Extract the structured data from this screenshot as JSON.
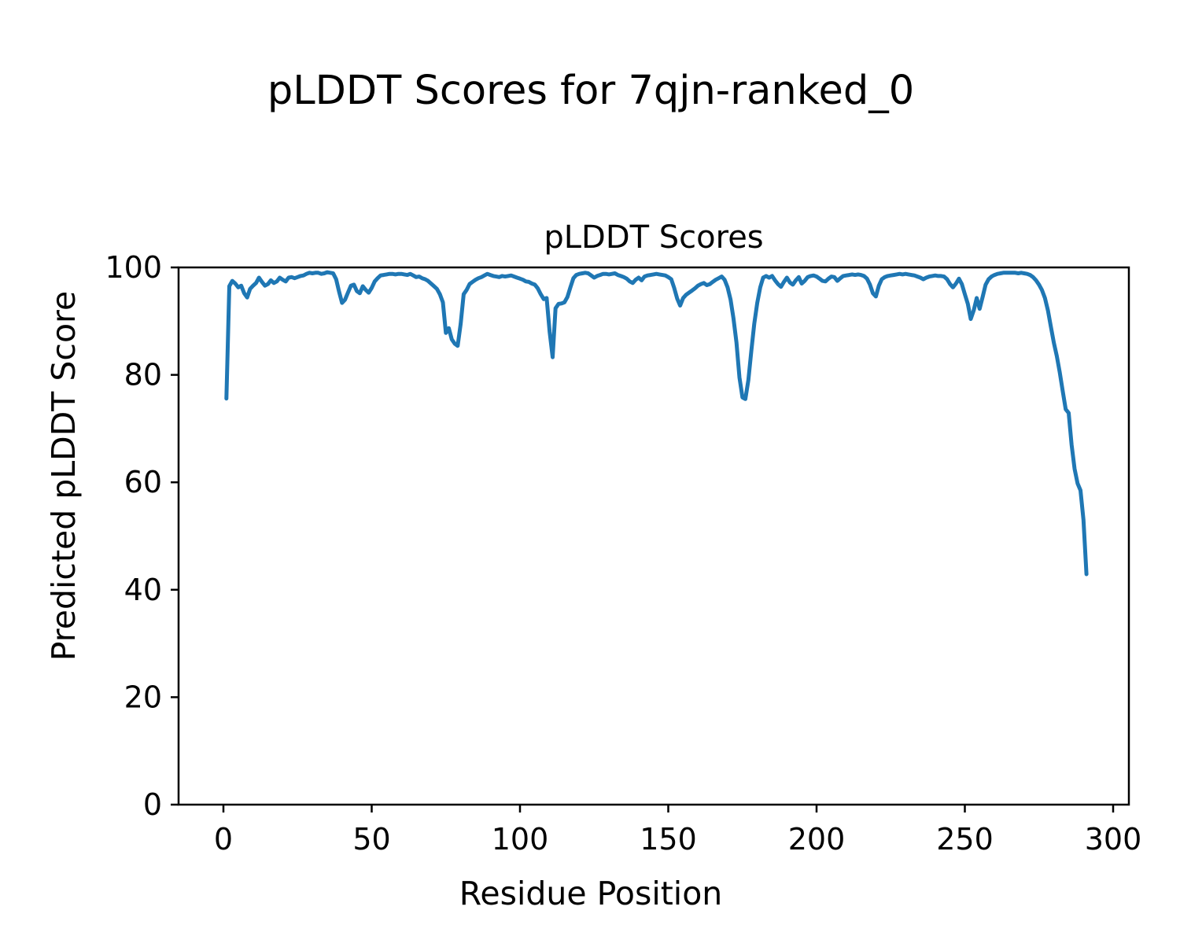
{
  "figure": {
    "suptitle": "pLDDT Scores for 7qjn-ranked_0",
    "background": "#ffffff"
  },
  "chart_data": {
    "type": "line",
    "title": "pLDDT Scores",
    "xlabel": "Residue Position",
    "ylabel": "Predicted pLDDT Score",
    "series_name": "pLDDT",
    "line_color": "#1f77b4",
    "line_width": 5,
    "grid": false,
    "legend": "none",
    "xlim": [
      -15,
      306
    ],
    "ylim": [
      0,
      100
    ],
    "xticks": [
      0,
      50,
      100,
      150,
      200,
      250,
      300
    ],
    "yticks": [
      0,
      20,
      40,
      60,
      80,
      100
    ],
    "x_start": 1,
    "x_step": 1,
    "values": [
      75.6,
      96.5,
      97.5,
      97.0,
      96.3,
      96.6,
      95.2,
      94.4,
      96.0,
      96.6,
      97.1,
      98.1,
      97.3,
      96.6,
      96.9,
      97.6,
      97.1,
      97.4,
      98.1,
      97.7,
      97.4,
      98.1,
      98.2,
      98.0,
      98.2,
      98.4,
      98.5,
      98.8,
      99.0,
      98.9,
      99.0,
      99.0,
      98.8,
      98.9,
      99.1,
      99.0,
      98.9,
      97.8,
      95.5,
      93.4,
      94.0,
      95.3,
      96.6,
      96.8,
      95.6,
      95.2,
      96.5,
      95.8,
      95.3,
      96.2,
      97.4,
      98.0,
      98.5,
      98.6,
      98.7,
      98.8,
      98.8,
      98.7,
      98.8,
      98.8,
      98.7,
      98.6,
      98.8,
      98.5,
      98.2,
      98.3,
      98.0,
      97.8,
      97.5,
      97.0,
      96.5,
      96.0,
      95.0,
      93.5,
      87.8,
      88.7,
      86.6,
      85.8,
      85.4,
      89.5,
      95.0,
      95.8,
      96.9,
      97.3,
      97.7,
      98.0,
      98.2,
      98.5,
      98.8,
      98.6,
      98.4,
      98.3,
      98.2,
      98.4,
      98.3,
      98.4,
      98.5,
      98.3,
      98.1,
      97.9,
      97.7,
      97.4,
      97.3,
      97.0,
      96.8,
      96.1,
      95.0,
      94.1,
      94.3,
      88.0,
      83.3,
      92.4,
      93.2,
      93.3,
      93.5,
      94.5,
      96.3,
      98.0,
      98.6,
      98.8,
      98.9,
      99.0,
      98.9,
      98.5,
      98.1,
      98.4,
      98.6,
      98.8,
      98.8,
      98.7,
      98.8,
      98.9,
      98.6,
      98.4,
      98.2,
      97.9,
      97.4,
      97.1,
      97.7,
      98.1,
      97.6,
      98.3,
      98.5,
      98.6,
      98.7,
      98.8,
      98.7,
      98.6,
      98.5,
      98.2,
      97.8,
      96.2,
      94.2,
      92.9,
      94.3,
      94.9,
      95.3,
      95.7,
      96.1,
      96.6,
      96.9,
      97.1,
      96.7,
      96.9,
      97.3,
      97.7,
      98.0,
      98.3,
      97.7,
      96.3,
      94.0,
      90.5,
      86.0,
      79.5,
      75.8,
      75.5,
      79.0,
      84.5,
      89.5,
      93.4,
      96.3,
      98.1,
      98.4,
      98.1,
      98.4,
      97.6,
      96.9,
      96.4,
      97.3,
      98.1,
      97.2,
      96.8,
      97.6,
      98.2,
      97.0,
      97.5,
      98.2,
      98.4,
      98.5,
      98.3,
      97.9,
      97.5,
      97.4,
      97.9,
      98.3,
      98.2,
      97.5,
      98.0,
      98.4,
      98.5,
      98.6,
      98.7,
      98.6,
      98.7,
      98.6,
      98.4,
      97.9,
      96.8,
      95.2,
      94.6,
      96.6,
      97.8,
      98.2,
      98.4,
      98.5,
      98.6,
      98.7,
      98.8,
      98.7,
      98.8,
      98.7,
      98.6,
      98.5,
      98.3,
      98.1,
      97.8,
      98.1,
      98.3,
      98.4,
      98.5,
      98.4,
      98.4,
      98.3,
      97.8,
      96.9,
      96.3,
      97.0,
      97.9,
      96.9,
      95.0,
      93.2,
      90.4,
      92.0,
      94.3,
      92.3,
      94.5,
      96.8,
      97.8,
      98.3,
      98.6,
      98.8,
      98.9,
      99.0,
      99.0,
      99.0,
      99.0,
      99.0,
      98.9,
      99.0,
      98.9,
      98.8,
      98.6,
      98.2,
      97.6,
      96.8,
      95.8,
      94.3,
      92.0,
      89.0,
      86.0,
      83.5,
      80.5,
      77.0,
      73.6,
      72.9,
      67.0,
      62.5,
      59.8,
      58.5,
      53.0,
      42.9
    ]
  }
}
